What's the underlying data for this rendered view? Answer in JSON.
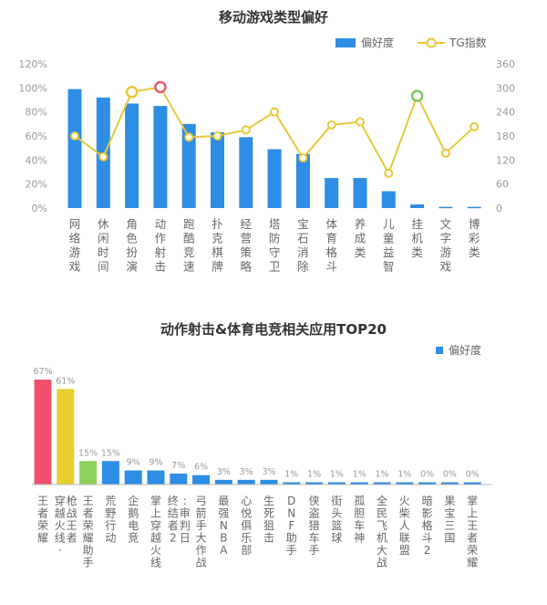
{
  "chart_data": [
    {
      "type": "bar",
      "title": "移动游戏类型偏好",
      "categories": [
        "网络游戏",
        "休闲时间",
        "角色扮演",
        "动作射击",
        "跑酷竞速",
        "扑克棋牌",
        "经营策略",
        "塔防守卫",
        "宝石消除",
        "体育格斗",
        "养成类",
        "儿童益智",
        "挂机类",
        "文字游戏",
        "博彩类"
      ],
      "series": [
        {
          "name": "偏好度",
          "type": "bar",
          "axis": "left",
          "color": "#2e8de4",
          "values": [
            99,
            92,
            87,
            85,
            70,
            63,
            59,
            49,
            45,
            25,
            25,
            14,
            3,
            1,
            1
          ]
        },
        {
          "name": "TG指数",
          "type": "line",
          "axis": "right",
          "color": "#e8c83a",
          "values": [
            180,
            128,
            290,
            302,
            177,
            180,
            195,
            240,
            125,
            208,
            215,
            87,
            280,
            137,
            203
          ]
        }
      ],
      "highlight": [
        {
          "index": 2,
          "color": "#e8c83a"
        },
        {
          "index": 3,
          "color": "#e85a6a"
        },
        {
          "index": 12,
          "color": "#7cc55a"
        }
      ],
      "y_left": {
        "ticks": [
          "0%",
          "20%",
          "40%",
          "60%",
          "80%",
          "100%",
          "120%"
        ],
        "range": [
          0,
          120
        ]
      },
      "y_right": {
        "ticks": [
          "0",
          "60",
          "120",
          "180",
          "240",
          "300",
          "360"
        ],
        "range": [
          0,
          360
        ]
      },
      "grid": false,
      "legend": {
        "position": "top-right",
        "items": [
          "偏好度",
          "TG指数"
        ]
      }
    },
    {
      "type": "bar",
      "title": "动作射击&体育电竞相关应用TOP20",
      "categories": [
        "王者荣耀",
        "穿越火线·枪战王者",
        "王者荣耀助手",
        "荒野行动",
        "企鹅电竞",
        "掌上穿越火线",
        "终结者2:审判日",
        "弓箭手大作战",
        "最强NBA",
        "心悦俱乐部",
        "生死狙击",
        "DNF助手",
        "侠盗猎车手",
        "街头篮球",
        "孤胆车神",
        "全民飞机大战",
        "火柴人联盟",
        "暗影格斗2",
        "果宝三国",
        "掌上王者荣耀"
      ],
      "values": [
        67,
        61,
        15,
        15,
        9,
        9,
        7,
        6,
        3,
        3,
        3,
        1,
        1,
        1,
        1,
        1,
        1,
        0,
        0,
        0
      ],
      "value_labels": [
        "67%",
        "61%",
        "15%",
        "15%",
        "9%",
        "9%",
        "7%",
        "6%",
        "3%",
        "3%",
        "3%",
        "1%",
        "1%",
        "1%",
        "1%",
        "1%",
        "1%",
        "0%",
        "0%",
        "0%"
      ],
      "bar_colors": [
        "#f0506e",
        "#e6cf2e",
        "#8dd15a"
      ],
      "default_color": "#2e8de4",
      "legend": {
        "position": "top-right",
        "items": [
          "偏好度"
        ]
      },
      "ylim": [
        0,
        70
      ]
    }
  ]
}
